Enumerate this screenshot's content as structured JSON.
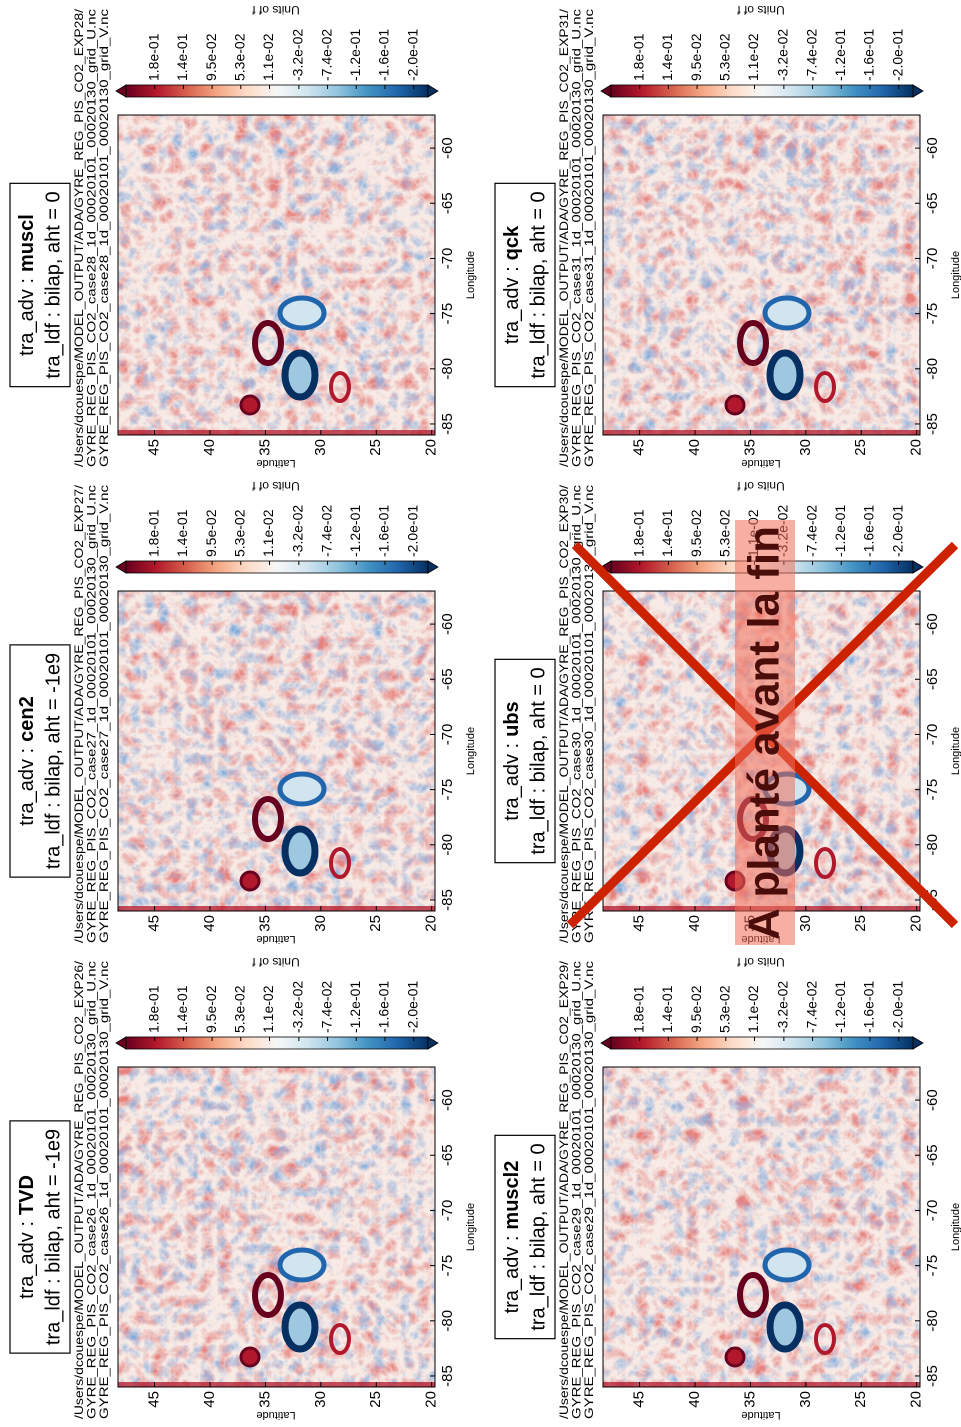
{
  "axes": {
    "xlabel": "Longitude",
    "ylabel": "Latitude",
    "xlim": [
      -86,
      -57
    ],
    "xticks": [
      -85,
      -80,
      -75,
      -70,
      -65,
      -60
    ],
    "ylim": [
      19.7,
      48.3
    ],
    "yticks": [
      20,
      25,
      30,
      35,
      40,
      45
    ],
    "colorbar": {
      "label": "Units of f",
      "clim": [
        -0.221,
        0.221
      ],
      "ticks": [
        {
          "value": 0.179,
          "label": "1.8e-01"
        },
        {
          "value": 0.137,
          "label": "1.4e-01"
        },
        {
          "value": 0.095,
          "label": "9.5e-02"
        },
        {
          "value": 0.053,
          "label": "5.3e-02"
        },
        {
          "value": 0.011,
          "label": "1.1e-02"
        },
        {
          "value": -0.032,
          "label": "-3.2e-02"
        },
        {
          "value": -0.074,
          "label": "-7.4e-02"
        },
        {
          "value": -0.116,
          "label": "-1.2e-01"
        },
        {
          "value": -0.158,
          "label": "-1.6e-01"
        },
        {
          "value": -0.2,
          "label": "-2.0e-01"
        }
      ]
    }
  },
  "panels": [
    {
      "adv": "tra_adv :",
      "scheme": "TVD",
      "ldf": "tra_ldf : bilap, aht = -1e9",
      "files": [
        "/Users/dcouespe/MODEL_OUTPUT/ADA/GYRE_REG_PIS_CO2_EXP26/",
        "GYRE_REG_PIS_CO2_case26_1d_00020101_00020130_grid_U.nc",
        "GYRE_REG_PIS_CO2_case26_1d_00020101_00020130_grid_V.nc"
      ]
    },
    {
      "adv": "tra_adv :",
      "scheme": "cen2",
      "ldf": "tra_ldf : bilap, aht = -1e9",
      "files": [
        "/Users/dcouespe/MODEL_OUTPUT/ADA/GYRE_REG_PIS_CO2_EXP27/",
        "GYRE_REG_PIS_CO2_case27_1d_00020101_00020130_grid_U.nc",
        "GYRE_REG_PIS_CO2_case27_1d_00020101_00020130_grid_V.nc"
      ]
    },
    {
      "adv": "tra_adv :",
      "scheme": "muscl",
      "ldf": "tra_ldf : bilap, aht = 0",
      "files": [
        "/Users/dcouespe/MODEL_OUTPUT/ADA/GYRE_REG_PIS_CO2_EXP28/",
        "GYRE_REG_PIS_CO2_case28_1d_00020101_00020130_grid_U.nc",
        "GYRE_REG_PIS_CO2_case28_1d_00020101_00020130_grid_V.nc"
      ]
    },
    {
      "adv": "tra_adv :",
      "scheme": "muscl2",
      "ldf": "tra_ldf : bilap, aht = 0",
      "files": [
        "/Users/dcouespe/MODEL_OUTPUT/ADA/GYRE_REG_PIS_CO2_EXP29/",
        "GYRE_REG_PIS_CO2_case29_1d_00020101_00020130_grid_U.nc",
        "GYRE_REG_PIS_CO2_case29_1d_00020101_00020130_grid_V.nc"
      ]
    },
    {
      "adv": "tra_adv :",
      "scheme": "ubs",
      "ldf": "tra_ldf : bilap, aht = 0",
      "files": [
        "/Users/dcouespe/MODEL_OUTPUT/ADA/GYRE_REG_PIS_CO2_EXP30/",
        "GYRE_REG_PIS_CO2_case30_1d_00020101_00020130_grid_U.nc",
        "GYRE_REG_PIS_CO2_case30_1d_00020101_00020130_grid_V.nc"
      ]
    },
    {
      "adv": "tra_adv :",
      "scheme": "qck",
      "ldf": "tra_ldf : bilap, aht = 0",
      "files": [
        "/Users/dcouespe/MODEL_OUTPUT/ADA/GYRE_REG_PIS_CO2_EXP31/",
        "GYRE_REG_PIS_CO2_case31_1d_00020101_00020130_grid_U.nc",
        "GYRE_REG_PIS_CO2_case31_1d_00020101_00020130_grid_V.nc"
      ]
    }
  ],
  "overlay": {
    "text": "A planté avant la fin"
  }
}
